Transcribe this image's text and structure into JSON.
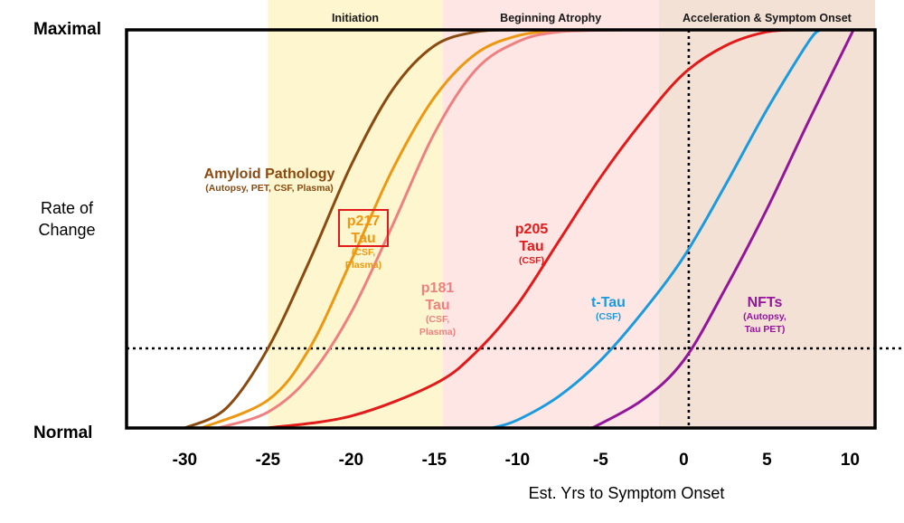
{
  "chart_data": {
    "type": "line",
    "title": "",
    "xlabel": "Est. Yrs to Symptom Onset",
    "ylabel": "Rate of Change",
    "x_ticks": [
      -30,
      -25,
      -20,
      -15,
      -10,
      -5,
      0,
      5,
      10
    ],
    "xlim": [
      -33.5,
      11.5
    ],
    "ylim": [
      0,
      1
    ],
    "y_labels": {
      "top": "Maximal",
      "middle": [
        "Rate of",
        "Change"
      ],
      "bottom": "Normal"
    },
    "bands": [
      {
        "label": "Initiation",
        "from": -25,
        "to": -14.5,
        "color": "#fdf6cf"
      },
      {
        "label": "Beginning Atrophy",
        "from": -14.5,
        "to": -1.5,
        "color": "#fde6e4"
      },
      {
        "label": "Acceleration & Symptom Onset",
        "from": -1.5,
        "to": 11.5,
        "color": "#f3e1d6"
      }
    ],
    "reference_lines": {
      "vertical_x": 0.3,
      "horizontal_y": 0.2
    },
    "series": [
      {
        "name": "Amyloid Pathology",
        "color": "#8a4a10",
        "label_lines": [
          "Amyloid Pathology",
          "(Autopsy, PET, CSF, Plasma)"
        ],
        "x": [
          -30,
          -27.5,
          -25,
          -22.5,
          -20,
          -17.5,
          -15,
          -12.5,
          -10.4
        ],
        "y": [
          0,
          0.05,
          0.2,
          0.42,
          0.66,
          0.85,
          0.96,
          0.995,
          1
        ]
      },
      {
        "name": "p217 Tau",
        "color": "#ee9710",
        "label_lines": [
          "p217",
          "Tau",
          "(CSF,",
          "Plasma)"
        ],
        "boxed": true,
        "x": [
          -29,
          -25,
          -22.5,
          -20,
          -17.5,
          -15,
          -12.5,
          -10,
          -7.5,
          -4.5
        ],
        "y": [
          0,
          0.07,
          0.2,
          0.42,
          0.65,
          0.83,
          0.94,
          0.985,
          0.998,
          1
        ]
      },
      {
        "name": "p181 Tau",
        "color": "#f08080",
        "label_lines": [
          "p181",
          "Tau",
          "(CSF,",
          "Plasma)"
        ],
        "x": [
          -28,
          -25,
          -22.5,
          -20,
          -17.5,
          -15,
          -12.5,
          -10,
          -7.5,
          -3.5
        ],
        "y": [
          0,
          0.04,
          0.13,
          0.29,
          0.51,
          0.74,
          0.9,
          0.97,
          0.995,
          1
        ]
      },
      {
        "name": "p205 Tau",
        "color": "#e31a1a",
        "label_lines": [
          "p205",
          "Tau",
          "(CSF)"
        ],
        "x": [
          -25,
          -20,
          -15,
          -12.5,
          -10,
          -7.5,
          -5,
          -2.5,
          0,
          2.5,
          5,
          7.2
        ],
        "y": [
          0,
          0.03,
          0.11,
          0.19,
          0.31,
          0.47,
          0.63,
          0.77,
          0.89,
          0.96,
          0.995,
          1
        ]
      },
      {
        "name": "t-Tau",
        "color": "#1a9be0",
        "label_lines": [
          "t-Tau",
          "(CSF)"
        ],
        "x": [
          -11.5,
          -10,
          -7.5,
          -5,
          -2.5,
          0,
          2.5,
          5,
          7.5,
          8.2
        ],
        "y": [
          0,
          0.02,
          0.08,
          0.17,
          0.29,
          0.43,
          0.61,
          0.8,
          0.97,
          1
        ]
      },
      {
        "name": "NFTs",
        "color": "#93169a",
        "label_lines": [
          "NFTs",
          "(Autopsy,",
          "Tau PET)"
        ],
        "x": [
          -5.5,
          -2.5,
          0,
          2.5,
          5,
          7.5,
          10.2
        ],
        "y": [
          0,
          0.07,
          0.17,
          0.35,
          0.55,
          0.77,
          1
        ]
      }
    ]
  }
}
